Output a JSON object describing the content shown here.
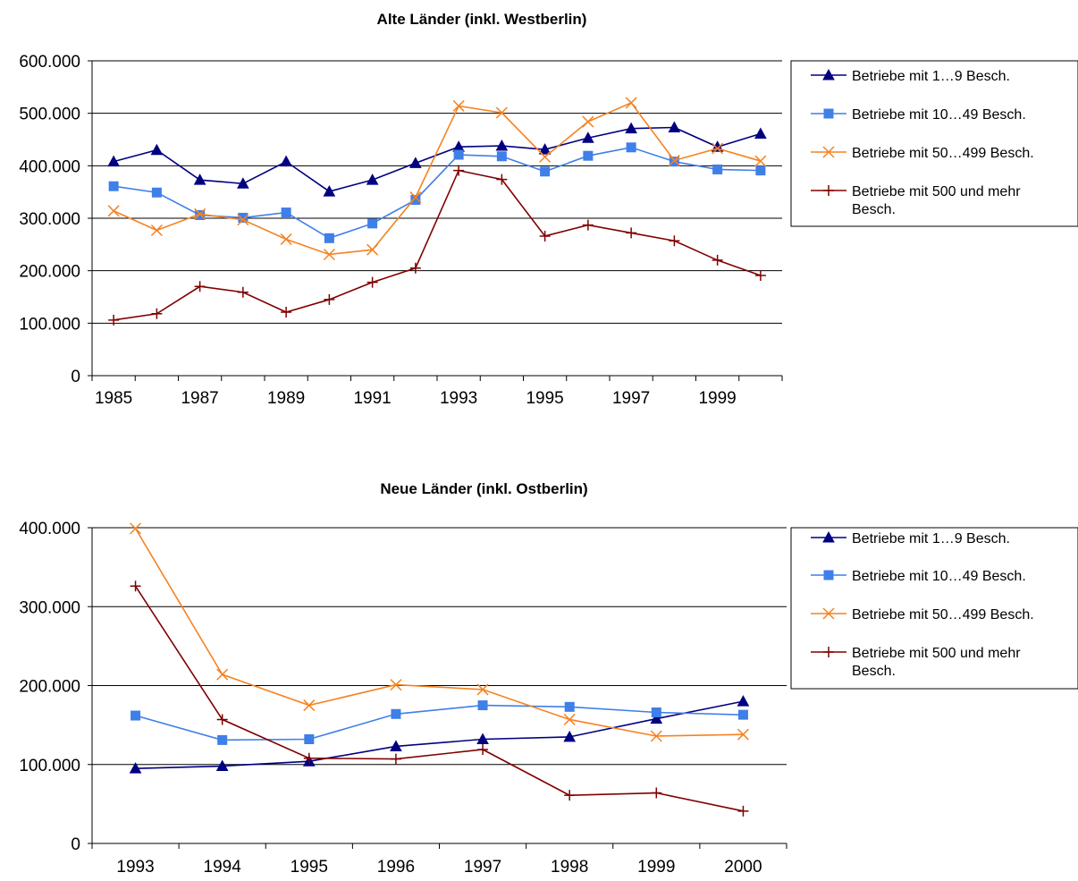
{
  "chart_data": [
    {
      "type": "line",
      "title": "Alte Länder (inkl. Westberlin)",
      "xlabel": "",
      "ylabel": "",
      "ylim": [
        0,
        600000
      ],
      "yticks": [
        "0",
        "100.000",
        "200.000",
        "300.000",
        "400.000",
        "500.000",
        "600.000"
      ],
      "x": [
        1985,
        1986,
        1987,
        1988,
        1989,
        1990,
        1991,
        1992,
        1993,
        1994,
        1995,
        1996,
        1997,
        1998,
        1999,
        2000
      ],
      "xtick_labels": [
        "1985",
        "",
        "1987",
        "",
        "1989",
        "",
        "1991",
        "",
        "1993",
        "",
        "1995",
        "",
        "1997",
        "",
        "1999",
        ""
      ],
      "grid": "horizontal",
      "legend_position": "right",
      "series": [
        {
          "name": "Betriebe mit 1…9 Besch.",
          "color": "#000080",
          "marker": "triangle",
          "values": [
            408000,
            430000,
            373000,
            366000,
            408000,
            351000,
            373000,
            405000,
            436000,
            438000,
            431000,
            453000,
            471000,
            473000,
            436000,
            461000
          ]
        },
        {
          "name": "Betriebe mit 10…49 Besch.",
          "color": "#3F7FE8",
          "marker": "square",
          "values": [
            361000,
            349000,
            306000,
            301000,
            311000,
            262000,
            290000,
            335000,
            421000,
            418000,
            389000,
            419000,
            435000,
            408000,
            393000,
            391000
          ]
        },
        {
          "name": "Betriebe mit 50…499 Besch.",
          "color": "#F58220",
          "marker": "x",
          "values": [
            314000,
            277000,
            308000,
            297000,
            260000,
            231000,
            240000,
            340000,
            514000,
            501000,
            417000,
            484000,
            520000,
            410000,
            433000,
            409000
          ]
        },
        {
          "name": "Betriebe mit 500 und mehr Besch.",
          "color": "#800000",
          "marker": "plus",
          "values": [
            106000,
            118000,
            170000,
            159000,
            121000,
            145000,
            178000,
            205000,
            391000,
            374000,
            266000,
            287000,
            272000,
            257000,
            220000,
            191000
          ]
        }
      ]
    },
    {
      "type": "line",
      "title": "Neue Länder (inkl. Ostberlin)",
      "xlabel": "",
      "ylabel": "",
      "ylim": [
        0,
        400000
      ],
      "yticks": [
        "0",
        "100.000",
        "200.000",
        "300.000",
        "400.000"
      ],
      "x": [
        1993,
        1994,
        1995,
        1996,
        1997,
        1998,
        1999,
        2000
      ],
      "xtick_labels": [
        "1993",
        "1994",
        "1995",
        "1996",
        "1997",
        "1998",
        "1999",
        "2000"
      ],
      "grid": "horizontal",
      "legend_position": "right",
      "series": [
        {
          "name": "Betriebe mit 1…9 Besch.",
          "color": "#000080",
          "marker": "triangle",
          "values": [
            95000,
            98000,
            104000,
            123000,
            132000,
            135000,
            158000,
            180000
          ]
        },
        {
          "name": "Betriebe mit 10…49 Besch.",
          "color": "#3F7FE8",
          "marker": "square",
          "values": [
            162000,
            131000,
            132000,
            164000,
            175000,
            173000,
            166000,
            163000
          ]
        },
        {
          "name": "Betriebe mit 50…499 Besch.",
          "color": "#F58220",
          "marker": "x",
          "values": [
            399000,
            214000,
            175000,
            201000,
            195000,
            157000,
            136000,
            138000
          ]
        },
        {
          "name": "Betriebe mit 500 und mehr Besch.",
          "color": "#800000",
          "marker": "plus",
          "values": [
            326000,
            157000,
            108000,
            107000,
            119000,
            61000,
            64000,
            41000
          ]
        }
      ]
    }
  ]
}
